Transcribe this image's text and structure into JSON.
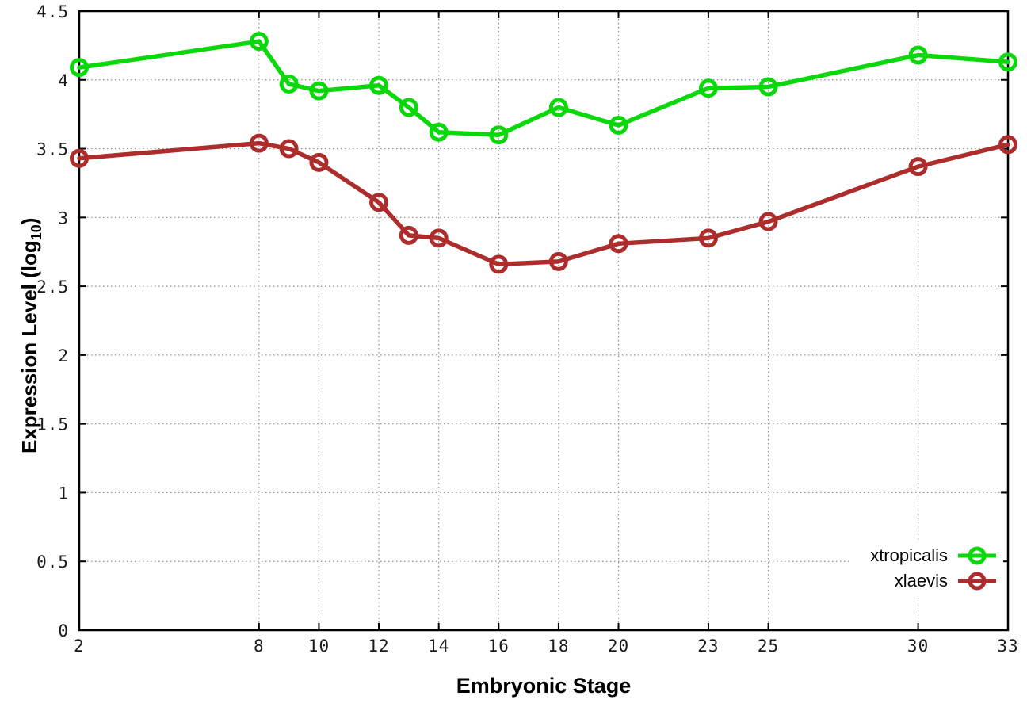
{
  "chart_data": {
    "type": "line",
    "title": "",
    "xlabel": "Embryonic Stage",
    "ylabel": "Expression Level (log10)",
    "ylabel_parts": {
      "prefix": "Expression Level (log",
      "sub": "10",
      "suffix": ")"
    },
    "x": [
      2,
      8,
      9,
      10,
      12,
      13,
      14,
      16,
      18,
      20,
      23,
      25,
      30,
      33
    ],
    "series": [
      {
        "name": "xtropicalis",
        "color": "#0bd80b",
        "marker": "open-circle",
        "values": [
          4.09,
          4.28,
          3.97,
          3.92,
          3.96,
          3.8,
          3.62,
          3.6,
          3.8,
          3.67,
          3.94,
          3.95,
          4.18,
          4.13
        ]
      },
      {
        "name": "xlaevis",
        "color": "#ad2c2c",
        "marker": "open-circle",
        "values": [
          3.43,
          3.54,
          3.5,
          3.4,
          3.11,
          2.87,
          2.85,
          2.66,
          2.68,
          2.81,
          2.85,
          2.97,
          3.37,
          3.53
        ]
      }
    ],
    "xticks": [
      2,
      8,
      10,
      12,
      14,
      16,
      18,
      20,
      23,
      25,
      30,
      33
    ],
    "yticks": [
      0,
      0.5,
      1,
      1.5,
      2,
      2.5,
      3,
      3.5,
      4,
      4.5
    ],
    "xlim": [
      2,
      33
    ],
    "ylim": [
      0,
      4.5
    ],
    "grid": true,
    "grid_color": "#8f8f8f",
    "axis_color": "#000000",
    "tick_label_color": "#1a1a1a",
    "legend_position": "inside-bottom-right"
  }
}
